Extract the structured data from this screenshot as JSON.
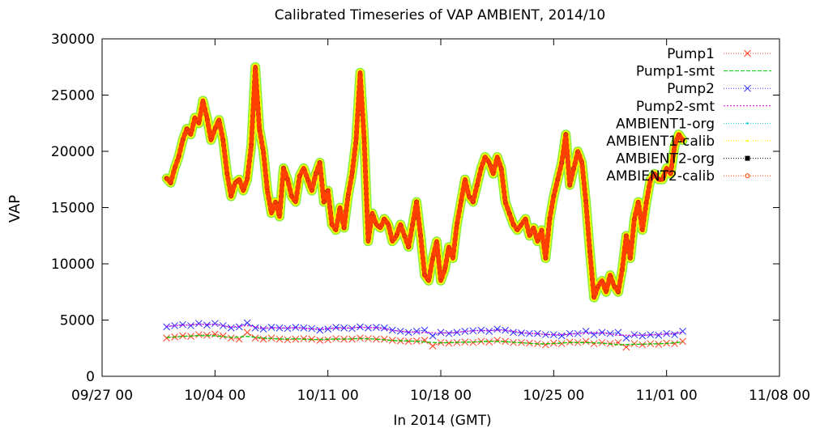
{
  "chart_data": {
    "type": "line",
    "title": "Calibrated Timeseries of VAP AMBIENT, 2014/10",
    "xlabel": "In 2014 (GMT)",
    "ylabel": "VAP",
    "xlim": [
      "2014-09-27 00:00",
      "2014-11-08 00:00"
    ],
    "ylim": [
      0,
      30000
    ],
    "x_ticks": [
      "09/27 00",
      "10/04 00",
      "10/11 00",
      "10/18 00",
      "10/25 00",
      "11/01 00",
      "11/08 00"
    ],
    "y_ticks": [
      "0",
      "5000",
      "10000",
      "15000",
      "20000",
      "25000",
      "30000"
    ],
    "grid": false,
    "legend_position": "top-right",
    "series": [
      {
        "name": "Pump1",
        "color": "#ff4020",
        "style": "line-x",
        "x": [
          "2014-10-01 00:00",
          "2014-10-01 12:00",
          "2014-10-02 00:00",
          "2014-10-02 12:00",
          "2014-10-03 00:00",
          "2014-10-03 12:00",
          "2014-10-04 00:00",
          "2014-10-04 12:00",
          "2014-10-05 00:00",
          "2014-10-05 12:00",
          "2014-10-06 00:00",
          "2014-10-06 12:00",
          "2014-10-07 00:00",
          "2014-10-07 12:00",
          "2014-10-08 00:00",
          "2014-10-08 12:00",
          "2014-10-09 00:00",
          "2014-10-09 12:00",
          "2014-10-10 00:00",
          "2014-10-10 12:00",
          "2014-10-11 00:00",
          "2014-10-11 12:00",
          "2014-10-12 00:00",
          "2014-10-12 12:00",
          "2014-10-13 00:00",
          "2014-10-13 12:00",
          "2014-10-14 00:00",
          "2014-10-14 12:00",
          "2014-10-15 00:00",
          "2014-10-15 12:00",
          "2014-10-16 00:00",
          "2014-10-16 12:00",
          "2014-10-17 00:00",
          "2014-10-17 12:00",
          "2014-10-18 00:00",
          "2014-10-18 12:00",
          "2014-10-19 00:00",
          "2014-10-19 12:00",
          "2014-10-20 00:00",
          "2014-10-20 12:00",
          "2014-10-21 00:00",
          "2014-10-21 12:00",
          "2014-10-22 00:00",
          "2014-10-22 12:00",
          "2014-10-23 00:00",
          "2014-10-23 12:00",
          "2014-10-24 00:00",
          "2014-10-24 12:00",
          "2014-10-25 00:00",
          "2014-10-25 12:00",
          "2014-10-26 00:00",
          "2014-10-26 12:00",
          "2014-10-27 00:00",
          "2014-10-27 12:00",
          "2014-10-28 00:00",
          "2014-10-28 12:00",
          "2014-10-29 00:00",
          "2014-10-29 12:00",
          "2014-10-30 00:00",
          "2014-10-30 12:00",
          "2014-10-31 00:00",
          "2014-10-31 12:00",
          "2014-11-01 00:00",
          "2014-11-01 12:00",
          "2014-11-02 00:00"
        ],
        "y": [
          3400,
          3500,
          3600,
          3550,
          3700,
          3650,
          3750,
          3600,
          3400,
          3300,
          3900,
          3400,
          3300,
          3400,
          3300,
          3250,
          3300,
          3350,
          3300,
          3200,
          3250,
          3350,
          3300,
          3300,
          3400,
          3350,
          3300,
          3300,
          3200,
          3150,
          3100,
          3150,
          3200,
          2700,
          3000,
          2950,
          3000,
          3050,
          3000,
          3100,
          3050,
          3200,
          3100,
          3000,
          3000,
          2950,
          2900,
          2800,
          2950,
          2900,
          3050,
          3000,
          3100,
          2900,
          3000,
          2900,
          3000,
          2600,
          2900,
          2800,
          2900,
          2850,
          2950,
          2900,
          3100
        ]
      },
      {
        "name": "Pump1-smt",
        "color": "#00cc00",
        "style": "dashed",
        "x": [
          "2014-10-01 00:00",
          "2014-10-02 00:00",
          "2014-10-03 00:00",
          "2014-10-04 00:00",
          "2014-10-05 00:00",
          "2014-10-06 00:00",
          "2014-10-07 00:00",
          "2014-10-08 00:00",
          "2014-10-09 00:00",
          "2014-10-10 00:00",
          "2014-10-11 00:00",
          "2014-10-12 00:00",
          "2014-10-13 00:00",
          "2014-10-14 00:00",
          "2014-10-15 00:00",
          "2014-10-16 00:00",
          "2014-10-17 00:00",
          "2014-10-18 00:00",
          "2014-10-19 00:00",
          "2014-10-20 00:00",
          "2014-10-21 00:00",
          "2014-10-22 00:00",
          "2014-10-23 00:00",
          "2014-10-24 00:00",
          "2014-10-25 00:00",
          "2014-10-26 00:00",
          "2014-10-27 00:00",
          "2014-10-28 00:00",
          "2014-10-29 00:00",
          "2014-10-30 00:00",
          "2014-10-31 00:00",
          "2014-11-01 00:00",
          "2014-11-02 00:00"
        ],
        "y": [
          3450,
          3550,
          3620,
          3600,
          3450,
          3550,
          3400,
          3320,
          3330,
          3260,
          3300,
          3310,
          3350,
          3300,
          3180,
          3150,
          3050,
          2980,
          3020,
          3050,
          3120,
          3080,
          2980,
          2880,
          2920,
          3000,
          3000,
          2950,
          2800,
          2850,
          2880,
          2920,
          3050
        ]
      },
      {
        "name": "Pump2",
        "color": "#2a2aff",
        "style": "line-x",
        "x": [
          "2014-10-01 00:00",
          "2014-10-01 12:00",
          "2014-10-02 00:00",
          "2014-10-02 12:00",
          "2014-10-03 00:00",
          "2014-10-03 12:00",
          "2014-10-04 00:00",
          "2014-10-04 12:00",
          "2014-10-05 00:00",
          "2014-10-05 12:00",
          "2014-10-06 00:00",
          "2014-10-06 12:00",
          "2014-10-07 00:00",
          "2014-10-07 12:00",
          "2014-10-08 00:00",
          "2014-10-08 12:00",
          "2014-10-09 00:00",
          "2014-10-09 12:00",
          "2014-10-10 00:00",
          "2014-10-10 12:00",
          "2014-10-11 00:00",
          "2014-10-11 12:00",
          "2014-10-12 00:00",
          "2014-10-12 12:00",
          "2014-10-13 00:00",
          "2014-10-13 12:00",
          "2014-10-14 00:00",
          "2014-10-14 12:00",
          "2014-10-15 00:00",
          "2014-10-15 12:00",
          "2014-10-16 00:00",
          "2014-10-16 12:00",
          "2014-10-17 00:00",
          "2014-10-17 12:00",
          "2014-10-18 00:00",
          "2014-10-18 12:00",
          "2014-10-19 00:00",
          "2014-10-19 12:00",
          "2014-10-20 00:00",
          "2014-10-20 12:00",
          "2014-10-21 00:00",
          "2014-10-21 12:00",
          "2014-10-22 00:00",
          "2014-10-22 12:00",
          "2014-10-23 00:00",
          "2014-10-23 12:00",
          "2014-10-24 00:00",
          "2014-10-24 12:00",
          "2014-10-25 00:00",
          "2014-10-25 12:00",
          "2014-10-26 00:00",
          "2014-10-26 12:00",
          "2014-10-27 00:00",
          "2014-10-27 12:00",
          "2014-10-28 00:00",
          "2014-10-28 12:00",
          "2014-10-29 00:00",
          "2014-10-29 12:00",
          "2014-10-30 00:00",
          "2014-10-30 12:00",
          "2014-10-31 00:00",
          "2014-10-31 12:00",
          "2014-11-01 00:00",
          "2014-11-01 12:00",
          "2014-11-02 00:00"
        ],
        "y": [
          4400,
          4500,
          4600,
          4500,
          4700,
          4550,
          4700,
          4500,
          4300,
          4400,
          4750,
          4300,
          4200,
          4350,
          4300,
          4250,
          4350,
          4300,
          4250,
          4100,
          4200,
          4350,
          4300,
          4250,
          4400,
          4300,
          4350,
          4300,
          4100,
          4000,
          3900,
          4000,
          4100,
          3600,
          3900,
          3800,
          3900,
          4000,
          4050,
          4100,
          4000,
          4200,
          4100,
          3900,
          3850,
          3800,
          3800,
          3700,
          3700,
          3600,
          3800,
          3800,
          4000,
          3700,
          3900,
          3800,
          3900,
          3400,
          3700,
          3600,
          3700,
          3650,
          3800,
          3700,
          4000
        ]
      },
      {
        "name": "Pump2-smt",
        "color": "#dd00dd",
        "style": "dotted",
        "x": [
          "2014-10-01 00:00",
          "2014-10-02 00:00",
          "2014-10-03 00:00",
          "2014-10-04 00:00",
          "2014-10-05 00:00",
          "2014-10-06 00:00",
          "2014-10-07 00:00",
          "2014-10-08 00:00",
          "2014-10-09 00:00",
          "2014-10-10 00:00",
          "2014-10-11 00:00",
          "2014-10-12 00:00",
          "2014-10-13 00:00",
          "2014-10-14 00:00",
          "2014-10-15 00:00",
          "2014-10-16 00:00",
          "2014-10-17 00:00",
          "2014-10-18 00:00",
          "2014-10-19 00:00",
          "2014-10-20 00:00",
          "2014-10-21 00:00",
          "2014-10-22 00:00",
          "2014-10-23 00:00",
          "2014-10-24 00:00",
          "2014-10-25 00:00",
          "2014-10-26 00:00",
          "2014-10-27 00:00",
          "2014-10-28 00:00",
          "2014-10-29 00:00",
          "2014-10-30 00:00",
          "2014-10-31 00:00",
          "2014-11-01 00:00",
          "2014-11-02 00:00"
        ],
        "y": [
          4450,
          4550,
          4620,
          4620,
          4380,
          4520,
          4280,
          4300,
          4320,
          4200,
          4260,
          4280,
          4350,
          4320,
          4080,
          3950,
          3900,
          3850,
          3920,
          4050,
          4080,
          4100,
          3900,
          3780,
          3700,
          3750,
          3850,
          3880,
          3650,
          3650,
          3680,
          3760,
          3900
        ]
      },
      {
        "name": "AMBIENT1-org",
        "color": "#00cccc",
        "style": "dots",
        "x": [],
        "y": []
      },
      {
        "name": "AMBIENT1-calib",
        "color": "#ffff00",
        "style": "dots",
        "x": [],
        "y": []
      },
      {
        "name": "AMBIENT2-org",
        "color": "#000000",
        "style": "squares",
        "x": [],
        "y": []
      },
      {
        "name": "AMBIENT2-calib",
        "color": "#ff4000",
        "style": "circles",
        "x": [
          "2014-10-01 00:00",
          "2014-10-01 06:00",
          "2014-10-01 12:00",
          "2014-10-01 18:00",
          "2014-10-02 00:00",
          "2014-10-02 06:00",
          "2014-10-02 12:00",
          "2014-10-02 18:00",
          "2014-10-03 00:00",
          "2014-10-03 06:00",
          "2014-10-03 12:00",
          "2014-10-03 18:00",
          "2014-10-04 00:00",
          "2014-10-04 06:00",
          "2014-10-04 12:00",
          "2014-10-04 18:00",
          "2014-10-05 00:00",
          "2014-10-05 06:00",
          "2014-10-05 12:00",
          "2014-10-05 18:00",
          "2014-10-06 00:00",
          "2014-10-06 06:00",
          "2014-10-06 12:00",
          "2014-10-06 18:00",
          "2014-10-07 00:00",
          "2014-10-07 06:00",
          "2014-10-07 12:00",
          "2014-10-07 18:00",
          "2014-10-08 00:00",
          "2014-10-08 06:00",
          "2014-10-08 12:00",
          "2014-10-08 18:00",
          "2014-10-09 00:00",
          "2014-10-09 06:00",
          "2014-10-09 12:00",
          "2014-10-09 18:00",
          "2014-10-10 00:00",
          "2014-10-10 06:00",
          "2014-10-10 12:00",
          "2014-10-10 18:00",
          "2014-10-11 00:00",
          "2014-10-11 06:00",
          "2014-10-11 12:00",
          "2014-10-11 18:00",
          "2014-10-12 00:00",
          "2014-10-12 06:00",
          "2014-10-12 12:00",
          "2014-10-12 18:00",
          "2014-10-13 00:00",
          "2014-10-13 06:00",
          "2014-10-13 12:00",
          "2014-10-13 18:00",
          "2014-10-14 00:00",
          "2014-10-14 06:00",
          "2014-10-14 12:00",
          "2014-10-14 18:00",
          "2014-10-15 00:00",
          "2014-10-15 06:00",
          "2014-10-15 12:00",
          "2014-10-15 18:00",
          "2014-10-16 00:00",
          "2014-10-16 06:00",
          "2014-10-16 12:00",
          "2014-10-16 18:00",
          "2014-10-17 00:00",
          "2014-10-17 06:00",
          "2014-10-17 12:00",
          "2014-10-17 18:00",
          "2014-10-18 00:00",
          "2014-10-18 06:00",
          "2014-10-18 12:00",
          "2014-10-18 18:00",
          "2014-10-19 00:00",
          "2014-10-19 06:00",
          "2014-10-19 12:00",
          "2014-10-19 18:00",
          "2014-10-20 00:00",
          "2014-10-20 06:00",
          "2014-10-20 12:00",
          "2014-10-20 18:00",
          "2014-10-21 00:00",
          "2014-10-21 06:00",
          "2014-10-21 12:00",
          "2014-10-21 18:00",
          "2014-10-22 00:00",
          "2014-10-22 06:00",
          "2014-10-22 12:00",
          "2014-10-22 18:00",
          "2014-10-23 00:00",
          "2014-10-23 06:00",
          "2014-10-23 12:00",
          "2014-10-23 18:00",
          "2014-10-24 00:00",
          "2014-10-24 06:00",
          "2014-10-24 12:00",
          "2014-10-24 18:00",
          "2014-10-25 00:00",
          "2014-10-25 06:00",
          "2014-10-25 12:00",
          "2014-10-25 18:00",
          "2014-10-26 00:00",
          "2014-10-26 06:00",
          "2014-10-26 12:00",
          "2014-10-26 18:00",
          "2014-10-27 00:00",
          "2014-10-27 06:00",
          "2014-10-27 12:00",
          "2014-10-27 18:00",
          "2014-10-28 00:00",
          "2014-10-28 06:00",
          "2014-10-28 12:00",
          "2014-10-28 18:00",
          "2014-10-29 00:00",
          "2014-10-29 06:00",
          "2014-10-29 12:00",
          "2014-10-29 18:00",
          "2014-10-30 00:00",
          "2014-10-30 06:00",
          "2014-10-30 12:00",
          "2014-10-30 18:00",
          "2014-10-31 00:00",
          "2014-10-31 06:00",
          "2014-10-31 12:00",
          "2014-10-31 18:00",
          "2014-11-01 00:00",
          "2014-11-01 06:00",
          "2014-11-01 12:00",
          "2014-11-01 18:00",
          "2014-11-02 00:00"
        ],
        "y": [
          17600,
          17200,
          18500,
          19500,
          21000,
          22000,
          21500,
          23000,
          22500,
          24500,
          23000,
          21000,
          22000,
          22800,
          21000,
          18000,
          16000,
          17200,
          17500,
          16500,
          17500,
          20500,
          27500,
          22000,
          20000,
          16500,
          14500,
          15500,
          14200,
          18500,
          17500,
          16000,
          15500,
          17800,
          18500,
          17500,
          16500,
          18000,
          19000,
          15500,
          16500,
          13500,
          13000,
          15000,
          13200,
          16000,
          18000,
          21000,
          27000,
          21000,
          12000,
          14500,
          13500,
          13200,
          14000,
          13500,
          12000,
          12500,
          13500,
          12500,
          11500,
          13500,
          15500,
          12500,
          9000,
          8500,
          10500,
          12000,
          8500,
          9500,
          11500,
          10500,
          13500,
          15500,
          17500,
          16000,
          15500,
          17000,
          18500,
          19500,
          19000,
          18000,
          19500,
          18500,
          15500,
          14500,
          13500,
          13000,
          13500,
          14000,
          12500,
          13200,
          12000,
          13000,
          10500,
          14000,
          16000,
          17500,
          19000,
          21500,
          17000,
          18500,
          20000,
          19000,
          15500,
          11000,
          7000,
          8000,
          8500,
          7500,
          9000,
          8000,
          7500,
          9500,
          12500,
          10500,
          14000,
          15500,
          13000,
          15500,
          17500,
          18000,
          17500,
          17500,
          18500,
          18000,
          20500,
          21500,
          21000
        ]
      }
    ]
  }
}
